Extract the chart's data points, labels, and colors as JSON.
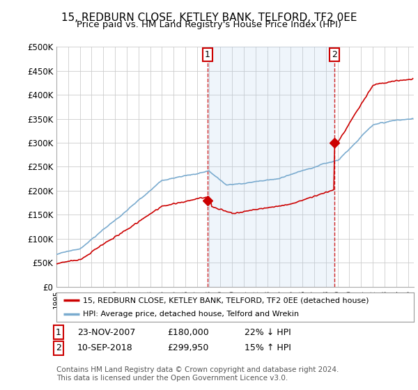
{
  "title": "15, REDBURN CLOSE, KETLEY BANK, TELFORD, TF2 0EE",
  "subtitle": "Price paid vs. HM Land Registry's House Price Index (HPI)",
  "ylabel_ticks": [
    "£0",
    "£50K",
    "£100K",
    "£150K",
    "£200K",
    "£250K",
    "£300K",
    "£350K",
    "£400K",
    "£450K",
    "£500K"
  ],
  "ytick_values": [
    0,
    50000,
    100000,
    150000,
    200000,
    250000,
    300000,
    350000,
    400000,
    450000,
    500000
  ],
  "ylim": [
    0,
    500000
  ],
  "xlim_start": 1995.0,
  "xlim_end": 2025.5,
  "background_color": "#ffffff",
  "plot_bg_color": "#ffffff",
  "grid_color": "#cccccc",
  "red_line_color": "#cc0000",
  "blue_line_color": "#7aabcf",
  "fill_color": "#ddeeff",
  "vline_color": "#cc0000",
  "sale1_year": 2007.9,
  "sale1_price": 180000,
  "sale2_year": 2018.7,
  "sale2_price": 299950,
  "marker1_label": "1",
  "marker2_label": "2",
  "legend_red": "15, REDBURN CLOSE, KETLEY BANK, TELFORD, TF2 0EE (detached house)",
  "legend_blue": "HPI: Average price, detached house, Telford and Wrekin",
  "table_row1_num": "1",
  "table_row1_date": "23-NOV-2007",
  "table_row1_price": "£180,000",
  "table_row1_hpi": "22% ↓ HPI",
  "table_row2_num": "2",
  "table_row2_date": "10-SEP-2018",
  "table_row2_price": "£299,950",
  "table_row2_hpi": "15% ↑ HPI",
  "footnote": "Contains HM Land Registry data © Crown copyright and database right 2024.\nThis data is licensed under the Open Government Licence v3.0."
}
